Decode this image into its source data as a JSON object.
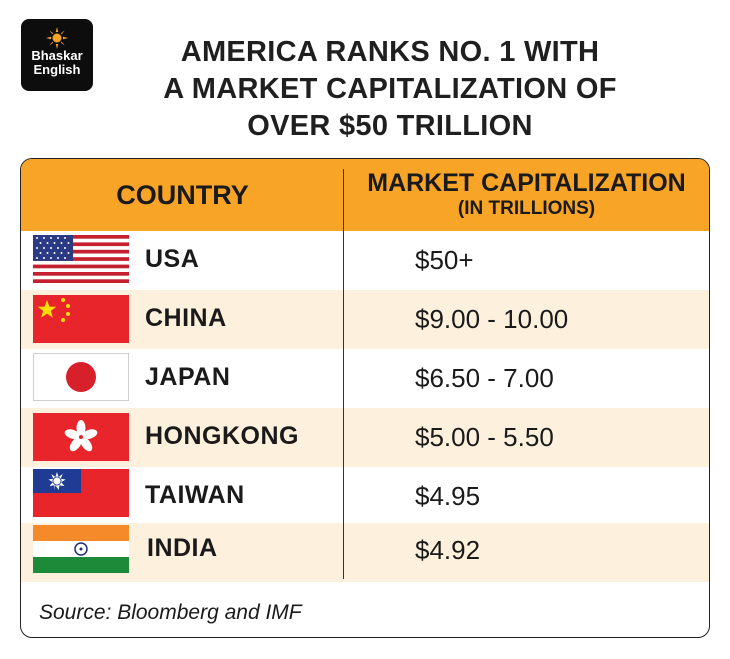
{
  "brand": {
    "line1": "Bhaskar",
    "line2": "English"
  },
  "chart_data": {
    "type": "table",
    "title": "AMERICA RANKS NO. 1 WITH A MARKET CAPITALIZATION OF OVER $50 TRILLION",
    "title_lines": [
      "AMERICA RANKS NO. 1 WITH",
      "A MARKET CAPITALIZATION OF",
      "OVER $50 TRILLION"
    ],
    "columns": [
      {
        "label": "COUNTRY",
        "sublabel": ""
      },
      {
        "label": "MARKET CAPITALIZATION",
        "sublabel": "(IN TRILLIONS)"
      }
    ],
    "rows": [
      {
        "country": "USA",
        "value": "$50+",
        "flag": "usa-flag-icon"
      },
      {
        "country": "CHINA",
        "value": "$9.00 - 10.00",
        "flag": "china-flag-icon"
      },
      {
        "country": "JAPAN",
        "value": "$6.50 - 7.00",
        "flag": "japan-flag-icon"
      },
      {
        "country": "HONGKONG",
        "value": "$5.00 - 5.50",
        "flag": "hongkong-flag-icon"
      },
      {
        "country": "TAIWAN",
        "value": "$4.95",
        "flag": "taiwan-flag-icon"
      },
      {
        "country": "INDIA",
        "value": "$4.92",
        "flag": "india-flag-icon"
      }
    ],
    "source": "Source: Bloomberg and IMF"
  },
  "colors": {
    "header": "#f7a427",
    "alt_row": "#fdf0dd",
    "logo_bg": "#0d0d0d",
    "sun": "#f7a427"
  }
}
